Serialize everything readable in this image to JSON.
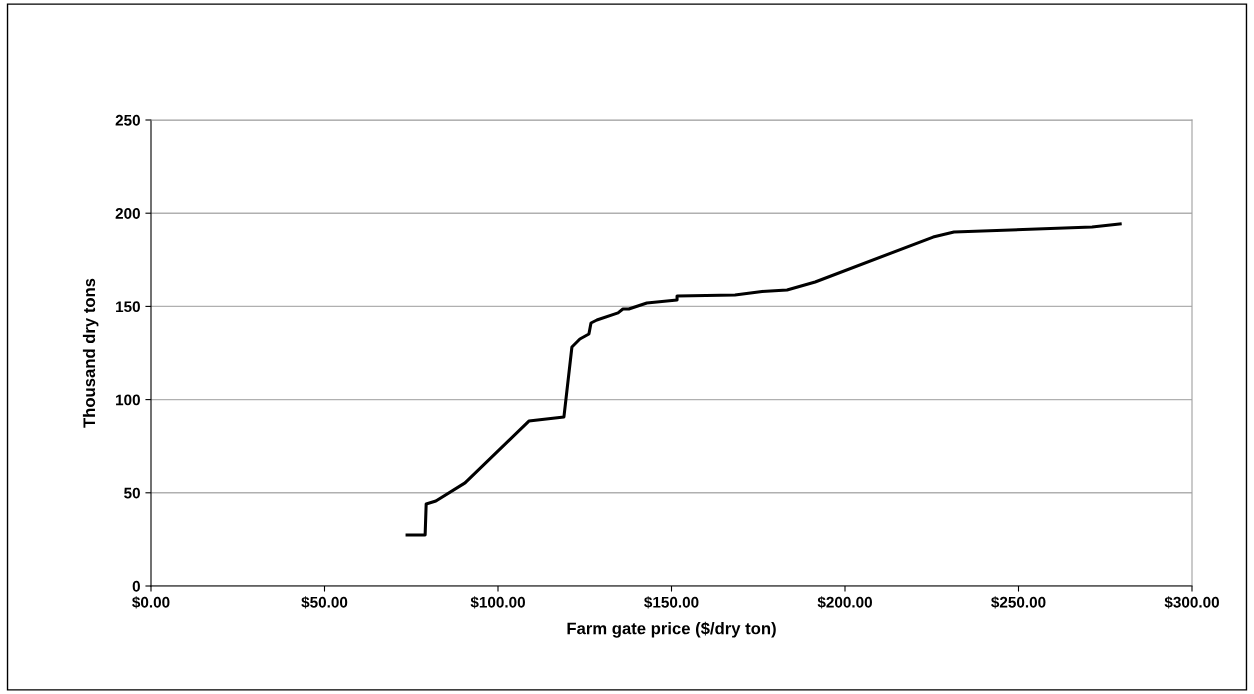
{
  "chart_data": {
    "type": "line",
    "xlabel": "Farm gate price ($/dry ton)",
    "ylabel": "Thousand dry tons",
    "xlim": [
      0,
      300
    ],
    "xticks": [
      {
        "value": 0,
        "label": "$0.00"
      },
      {
        "value": 50,
        "label": "$50.00"
      },
      {
        "value": 100,
        "label": "$100.00"
      },
      {
        "value": 150,
        "label": "$150.00"
      },
      {
        "value": 200,
        "label": "$200.00"
      },
      {
        "value": 250,
        "label": "$250.00"
      },
      {
        "value": 300,
        "label": "$300.00"
      }
    ],
    "ylim": [
      0,
      250
    ],
    "yticks": [
      0,
      50,
      100,
      150,
      200,
      250
    ],
    "grid": "y",
    "legend": false,
    "marker": "none",
    "line_style": "solid",
    "series": [
      {
        "color": "#000000",
        "x": [
          73.8,
          79.0,
          79.3,
          82.1,
          90.5,
          108.9,
          119.0,
          121.3,
          123.6,
          126.2,
          126.8,
          128.5,
          134.6,
          136.0,
          137.7,
          142.9,
          151.6,
          151.6,
          168.3,
          176.1,
          183.3,
          191.4,
          225.4,
          231.4,
          271.2,
          279.3
        ],
        "values": [
          27.4,
          27.4,
          44,
          45.6,
          55.3,
          88.5,
          90.7,
          128.2,
          132.5,
          135.2,
          141.1,
          142.7,
          146.5,
          148.6,
          148.6,
          151.8,
          153.4,
          155.6,
          156.1,
          158,
          158.8,
          163.1,
          187.2,
          189.9,
          192.6,
          194.2
        ]
      }
    ]
  }
}
